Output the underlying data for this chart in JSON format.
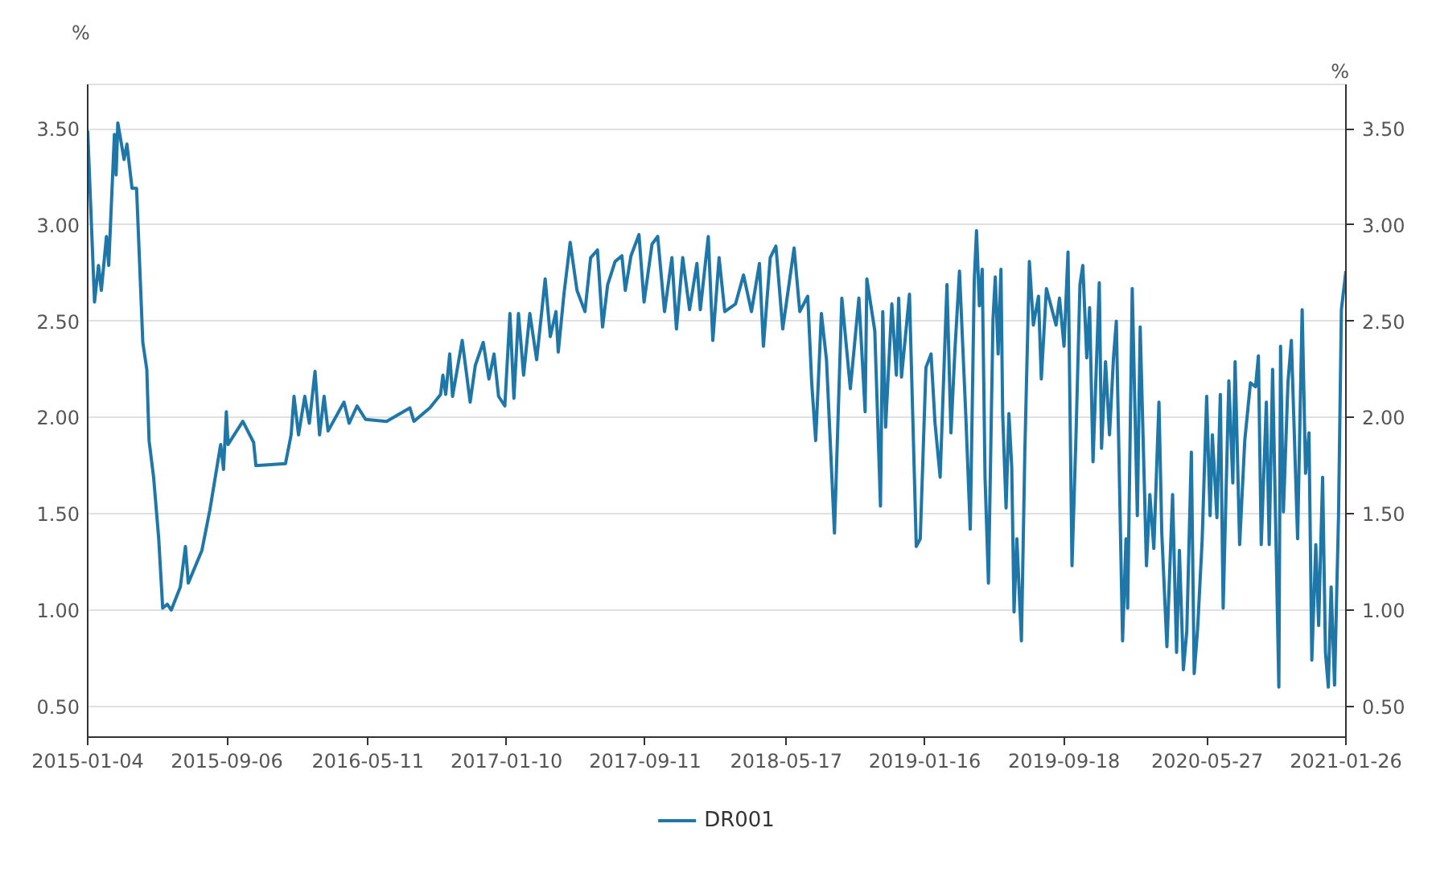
{
  "chart_data": {
    "type": "line",
    "ylabel": "%",
    "y2label": "%",
    "x": [
      "2015-01-04",
      "2015-01-16",
      "2015-01-23",
      "2015-01-28",
      "2015-02-06",
      "2015-02-10",
      "2015-02-20",
      "2015-02-23",
      "2015-02-26",
      "2015-03-09",
      "2015-03-14",
      "2015-03-23",
      "2015-03-31",
      "2015-04-11",
      "2015-04-18",
      "2015-04-22",
      "2015-04-30",
      "2015-05-09",
      "2015-05-16",
      "2015-05-24",
      "2015-05-31",
      "2015-06-16",
      "2015-06-25",
      "2015-06-30",
      "2015-07-24",
      "2015-08-07",
      "2015-08-26",
      "2015-08-31",
      "2015-09-05",
      "2015-09-08",
      "2015-10-04",
      "2015-10-23",
      "2015-10-27",
      "2015-12-18",
      "2015-12-28",
      "2016-01-02",
      "2016-01-10",
      "2016-01-21",
      "2016-01-29",
      "2016-02-08",
      "2016-02-16",
      "2016-02-24",
      "2016-03-02",
      "2016-03-30",
      "2016-04-08",
      "2016-04-22",
      "2016-05-07",
      "2016-06-13",
      "2016-07-24",
      "2016-07-31",
      "2016-08-28",
      "2016-09-16",
      "2016-09-20",
      "2016-09-25",
      "2016-10-02",
      "2016-10-07",
      "2016-10-24",
      "2016-11-07",
      "2016-11-16",
      "2016-11-30",
      "2016-12-10",
      "2016-12-19",
      "2016-12-27",
      "2017-01-07",
      "2017-01-16",
      "2017-01-23",
      "2017-01-31",
      "2017-02-09",
      "2017-02-20",
      "2017-03-04",
      "2017-03-19",
      "2017-03-28",
      "2017-04-07",
      "2017-04-11",
      "2017-04-21",
      "2017-05-02",
      "2017-05-14",
      "2017-05-28",
      "2017-06-07",
      "2017-06-19",
      "2017-06-28",
      "2017-07-07",
      "2017-07-20",
      "2017-08-01",
      "2017-08-07",
      "2017-08-17",
      "2017-08-31",
      "2017-09-09",
      "2017-09-23",
      "2017-10-03",
      "2017-10-15",
      "2017-10-28",
      "2017-11-05",
      "2017-11-16",
      "2017-11-28",
      "2017-12-11",
      "2017-12-17",
      "2017-12-31",
      "2018-01-08",
      "2018-01-19",
      "2018-01-29",
      "2018-02-17",
      "2018-03-03",
      "2018-03-17",
      "2018-03-31",
      "2018-04-07",
      "2018-04-19",
      "2018-04-29",
      "2018-05-11",
      "2018-05-31",
      "2018-06-10",
      "2018-06-24",
      "2018-07-01",
      "2018-07-08",
      "2018-07-18",
      "2018-07-27",
      "2018-08-10",
      "2018-08-23",
      "2018-09-07",
      "2018-09-22",
      "2018-10-03",
      "2018-10-06",
      "2018-10-20",
      "2018-10-30",
      "2018-11-03",
      "2018-11-08",
      "2018-11-19",
      "2018-11-27",
      "2018-12-01",
      "2018-12-06",
      "2018-12-20",
      "2019-01-01",
      "2019-01-08",
      "2019-01-18",
      "2019-01-27",
      "2019-02-03",
      "2019-02-12",
      "2019-02-24",
      "2019-03-03",
      "2019-03-10",
      "2019-03-18",
      "2019-03-29",
      "2019-04-06",
      "2019-04-13",
      "2019-04-17",
      "2019-04-22",
      "2019-04-27",
      "2019-05-02",
      "2019-05-08",
      "2019-05-16",
      "2019-05-20",
      "2019-05-25",
      "2019-05-30",
      "2019-06-02",
      "2019-06-08",
      "2019-06-13",
      "2019-06-18",
      "2019-06-22",
      "2019-06-27",
      "2019-07-05",
      "2019-07-11",
      "2019-07-19",
      "2019-07-26",
      "2019-08-04",
      "2019-08-09",
      "2019-08-18",
      "2019-09-04",
      "2019-09-10",
      "2019-09-18",
      "2019-09-25",
      "2019-10-02",
      "2019-10-09",
      "2019-10-16",
      "2019-10-21",
      "2019-10-28",
      "2019-11-02",
      "2019-11-08",
      "2019-11-19",
      "2019-11-23",
      "2019-11-30",
      "2019-12-07",
      "2019-12-14",
      "2019-12-19",
      "2019-12-30",
      "2020-01-05",
      "2020-01-08",
      "2020-01-16",
      "2020-01-25",
      "2020-01-30",
      "2020-02-10",
      "2020-02-16",
      "2020-02-23",
      "2020-03-03",
      "2020-03-08",
      "2020-03-17",
      "2020-03-27",
      "2020-04-03",
      "2020-04-08",
      "2020-04-15",
      "2020-04-21",
      "2020-04-29",
      "2020-05-04",
      "2020-05-10",
      "2020-05-18",
      "2020-05-26",
      "2020-06-01",
      "2020-06-05",
      "2020-06-13",
      "2020-06-19",
      "2020-06-24",
      "2020-07-04",
      "2020-07-11",
      "2020-07-15",
      "2020-07-23",
      "2020-08-01",
      "2020-08-11",
      "2020-08-20",
      "2020-08-25",
      "2020-08-30",
      "2020-09-08",
      "2020-09-13",
      "2020-09-19",
      "2020-09-30",
      "2020-10-03",
      "2020-10-08",
      "2020-10-16",
      "2020-10-22",
      "2020-11-02",
      "2020-11-10",
      "2020-11-16",
      "2020-11-22",
      "2020-11-27",
      "2020-12-04",
      "2020-12-09",
      "2020-12-16",
      "2020-12-21",
      "2020-12-26",
      "2020-12-31",
      "2021-01-06",
      "2021-01-13",
      "2021-01-18",
      "2021-01-26"
    ],
    "series": [
      {
        "name": "DR001",
        "color": "#1f77a8",
        "values": [
          3.49,
          2.6,
          2.79,
          2.66,
          2.94,
          2.79,
          3.47,
          3.26,
          3.53,
          3.34,
          3.42,
          3.19,
          3.19,
          2.39,
          2.25,
          1.88,
          1.69,
          1.37,
          1.01,
          1.03,
          1.0,
          1.12,
          1.33,
          1.14,
          1.31,
          1.52,
          1.86,
          1.73,
          2.03,
          1.86,
          1.98,
          1.87,
          1.75,
          1.76,
          1.91,
          2.11,
          1.91,
          2.11,
          1.97,
          2.24,
          1.91,
          2.11,
          1.93,
          2.08,
          1.97,
          2.06,
          1.99,
          1.98,
          2.05,
          1.98,
          2.05,
          2.12,
          2.22,
          2.12,
          2.33,
          2.11,
          2.4,
          2.08,
          2.27,
          2.39,
          2.2,
          2.33,
          2.11,
          2.06,
          2.54,
          2.1,
          2.54,
          2.22,
          2.54,
          2.3,
          2.72,
          2.42,
          2.55,
          2.34,
          2.64,
          2.91,
          2.66,
          2.55,
          2.83,
          2.87,
          2.47,
          2.69,
          2.81,
          2.84,
          2.66,
          2.84,
          2.95,
          2.6,
          2.9,
          2.94,
          2.55,
          2.83,
          2.46,
          2.83,
          2.56,
          2.8,
          2.56,
          2.94,
          2.4,
          2.83,
          2.55,
          2.59,
          2.74,
          2.55,
          2.8,
          2.37,
          2.83,
          2.89,
          2.46,
          2.88,
          2.55,
          2.63,
          2.18,
          1.88,
          2.54,
          2.3,
          1.4,
          2.62,
          2.15,
          2.62,
          2.03,
          2.72,
          2.45,
          1.54,
          2.55,
          1.95,
          2.59,
          2.22,
          2.62,
          2.21,
          2.64,
          1.33,
          1.37,
          2.26,
          2.33,
          1.97,
          1.69,
          2.69,
          1.92,
          2.35,
          2.76,
          2.02,
          1.42,
          2.71,
          2.97,
          2.58,
          2.77,
          1.69,
          1.14,
          2.51,
          2.73,
          2.33,
          2.77,
          2.02,
          1.53,
          2.02,
          1.74,
          0.99,
          1.37,
          0.84,
          1.82,
          2.81,
          2.48,
          2.63,
          2.2,
          2.67,
          2.48,
          2.62,
          2.37,
          2.86,
          1.23,
          1.9,
          2.69,
          2.79,
          2.31,
          2.57,
          1.77,
          2.7,
          1.84,
          2.29,
          1.91,
          2.31,
          2.5,
          0.84,
          1.37,
          1.01,
          2.67,
          1.49,
          2.47,
          1.23,
          1.6,
          1.32,
          2.08,
          1.4,
          0.81,
          1.6,
          0.78,
          1.31,
          0.69,
          0.89,
          1.82,
          0.67,
          0.9,
          1.36,
          2.11,
          1.49,
          1.91,
          1.48,
          2.12,
          1.01,
          2.19,
          1.66,
          2.29,
          1.34,
          1.88,
          2.18,
          2.16,
          2.32,
          1.34,
          2.08,
          1.34,
          2.25,
          0.6,
          2.37,
          1.51,
          2.18,
          2.4,
          1.37,
          2.56,
          1.71,
          1.92,
          0.74,
          1.34,
          0.92,
          1.69,
          0.78,
          0.6,
          1.12,
          0.61,
          1.49,
          2.56,
          2.76
        ]
      }
    ],
    "xlim": [
      "2015-01-04",
      "2021-01-26"
    ],
    "xticks": [
      "2015-01-04",
      "2015-09-06",
      "2016-05-11",
      "2017-01-10",
      "2017-09-11",
      "2018-05-17",
      "2019-01-16",
      "2019-09-18",
      "2020-05-27",
      "2021-01-26"
    ],
    "ylim": [
      0.34,
      3.73
    ],
    "yticks": [
      {
        "value": 0.5,
        "label": "0.50"
      },
      {
        "value": 1.0,
        "label": "1.00"
      },
      {
        "value": 1.5,
        "label": "1.50"
      },
      {
        "value": 2.0,
        "label": "2.00"
      },
      {
        "value": 2.5,
        "label": "2.50"
      },
      {
        "value": 3.0,
        "label": "3.00"
      },
      {
        "value": 3.5,
        "label": "3.50"
      }
    ],
    "y2lim": [
      0.34,
      3.73
    ],
    "y2ticks": [
      {
        "value": 0.5,
        "label": "0.50"
      },
      {
        "value": 1.0,
        "label": "1.00"
      },
      {
        "value": 1.5,
        "label": "1.50"
      },
      {
        "value": 2.0,
        "label": "2.00"
      },
      {
        "value": 2.5,
        "label": "2.50"
      },
      {
        "value": 3.0,
        "label": "3.00"
      },
      {
        "value": 3.5,
        "label": "3.50"
      }
    ],
    "grid": "y",
    "legend": "bottom",
    "line_style": "solid"
  }
}
